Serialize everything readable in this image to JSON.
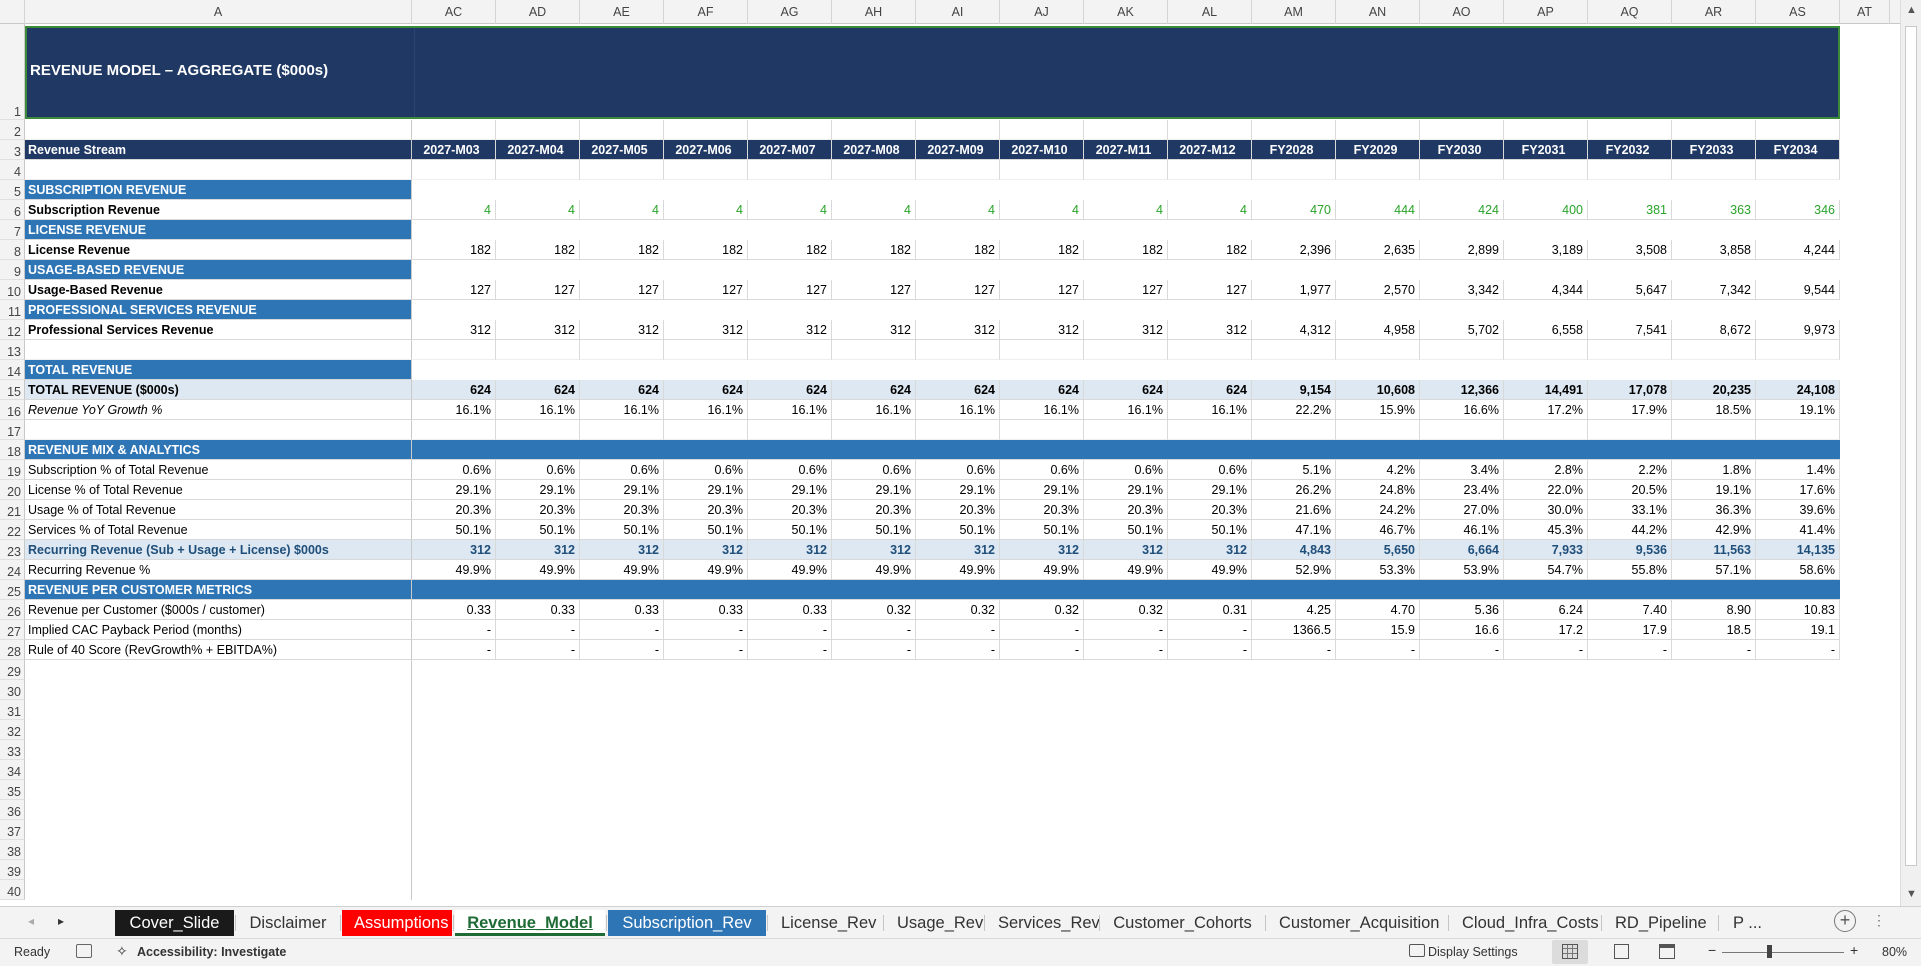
{
  "sheet": {
    "title": "REVENUE MODEL – AGGREGATE ($000s)",
    "column_letters": [
      "A",
      "AC",
      "AD",
      "AE",
      "AF",
      "AG",
      "AH",
      "AI",
      "AJ",
      "AK",
      "AL",
      "AM",
      "AN",
      "AO",
      "AP",
      "AQ",
      "AR",
      "AS",
      "AT"
    ],
    "row_numbers": [
      "1",
      "2",
      "3",
      "4",
      "5",
      "6",
      "7",
      "8",
      "9",
      "10",
      "11",
      "12",
      "13",
      "14",
      "15",
      "16",
      "17",
      "18",
      "19",
      "20",
      "21",
      "22",
      "23",
      "24",
      "25",
      "26",
      "27",
      "28",
      "29",
      "30",
      "31",
      "32",
      "33",
      "34",
      "35",
      "36",
      "37",
      "38",
      "39",
      "40"
    ],
    "header_label": "Revenue Stream",
    "periods": [
      "2027-M03",
      "2027-M04",
      "2027-M05",
      "2027-M06",
      "2027-M07",
      "2027-M08",
      "2027-M09",
      "2027-M10",
      "2027-M11",
      "2027-M12",
      "FY2028",
      "FY2029",
      "FY2030",
      "FY2031",
      "FY2032",
      "FY2033",
      "FY2034"
    ],
    "rows": [
      {
        "r": "5",
        "label": "SUBSCRIPTION REVENUE",
        "style": "sec",
        "values": []
      },
      {
        "r": "6",
        "label": "Subscription Revenue",
        "style": "bold green",
        "values": [
          "4",
          "4",
          "4",
          "4",
          "4",
          "4",
          "4",
          "4",
          "4",
          "4",
          "470",
          "444",
          "424",
          "400",
          "381",
          "363",
          "346"
        ]
      },
      {
        "r": "7",
        "label": "LICENSE REVENUE",
        "style": "sec",
        "values": []
      },
      {
        "r": "8",
        "label": "License Revenue",
        "style": "bold",
        "values": [
          "182",
          "182",
          "182",
          "182",
          "182",
          "182",
          "182",
          "182",
          "182",
          "182",
          "2,396",
          "2,635",
          "2,899",
          "3,189",
          "3,508",
          "3,858",
          "4,244"
        ]
      },
      {
        "r": "9",
        "label": "USAGE-BASED REVENUE",
        "style": "sec",
        "values": []
      },
      {
        "r": "10",
        "label": "Usage-Based Revenue",
        "style": "bold",
        "values": [
          "127",
          "127",
          "127",
          "127",
          "127",
          "127",
          "127",
          "127",
          "127",
          "127",
          "1,977",
          "2,570",
          "3,342",
          "4,344",
          "5,647",
          "7,342",
          "9,544"
        ]
      },
      {
        "r": "11",
        "label": "PROFESSIONAL SERVICES REVENUE",
        "style": "sec",
        "values": []
      },
      {
        "r": "12",
        "label": "Professional Services Revenue",
        "style": "bold",
        "values": [
          "312",
          "312",
          "312",
          "312",
          "312",
          "312",
          "312",
          "312",
          "312",
          "312",
          "4,312",
          "4,958",
          "5,702",
          "6,558",
          "7,541",
          "8,672",
          "9,973"
        ]
      },
      {
        "r": "13",
        "label": "",
        "style": "blankrow",
        "values": []
      },
      {
        "r": "14",
        "label": "TOTAL REVENUE",
        "style": "sec",
        "values": []
      },
      {
        "r": "15",
        "label": "TOTAL REVENUE ($000s)",
        "style": "tot",
        "values": [
          "624",
          "624",
          "624",
          "624",
          "624",
          "624",
          "624",
          "624",
          "624",
          "624",
          "9,154",
          "10,608",
          "12,366",
          "14,491",
          "17,078",
          "20,235",
          "24,108"
        ]
      },
      {
        "r": "16",
        "label": "Revenue YoY Growth %",
        "style": "ital",
        "values": [
          "16.1%",
          "16.1%",
          "16.1%",
          "16.1%",
          "16.1%",
          "16.1%",
          "16.1%",
          "16.1%",
          "16.1%",
          "16.1%",
          "22.2%",
          "15.9%",
          "16.6%",
          "17.2%",
          "17.9%",
          "18.5%",
          "19.1%"
        ]
      },
      {
        "r": "17",
        "label": "",
        "style": "blankrow",
        "values": []
      },
      {
        "r": "18",
        "label": "REVENUE MIX & ANALYTICS",
        "style": "sec fullsec",
        "values": []
      },
      {
        "r": "19",
        "label": "Subscription % of Total Revenue",
        "style": "",
        "values": [
          "0.6%",
          "0.6%",
          "0.6%",
          "0.6%",
          "0.6%",
          "0.6%",
          "0.6%",
          "0.6%",
          "0.6%",
          "0.6%",
          "5.1%",
          "4.2%",
          "3.4%",
          "2.8%",
          "2.2%",
          "1.8%",
          "1.4%"
        ]
      },
      {
        "r": "20",
        "label": "License % of Total Revenue",
        "style": "",
        "values": [
          "29.1%",
          "29.1%",
          "29.1%",
          "29.1%",
          "29.1%",
          "29.1%",
          "29.1%",
          "29.1%",
          "29.1%",
          "29.1%",
          "26.2%",
          "24.8%",
          "23.4%",
          "22.0%",
          "20.5%",
          "19.1%",
          "17.6%"
        ]
      },
      {
        "r": "21",
        "label": "Usage % of Total Revenue",
        "style": "",
        "values": [
          "20.3%",
          "20.3%",
          "20.3%",
          "20.3%",
          "20.3%",
          "20.3%",
          "20.3%",
          "20.3%",
          "20.3%",
          "20.3%",
          "21.6%",
          "24.2%",
          "27.0%",
          "30.0%",
          "33.1%",
          "36.3%",
          "39.6%"
        ]
      },
      {
        "r": "22",
        "label": "Services % of Total Revenue",
        "style": "",
        "values": [
          "50.1%",
          "50.1%",
          "50.1%",
          "50.1%",
          "50.1%",
          "50.1%",
          "50.1%",
          "50.1%",
          "50.1%",
          "50.1%",
          "47.1%",
          "46.7%",
          "46.1%",
          "45.3%",
          "44.2%",
          "42.9%",
          "41.4%"
        ]
      },
      {
        "r": "23",
        "label": "Recurring Revenue (Sub + Usage + License) $000s",
        "style": "rec",
        "values": [
          "312",
          "312",
          "312",
          "312",
          "312",
          "312",
          "312",
          "312",
          "312",
          "312",
          "4,843",
          "5,650",
          "6,664",
          "7,933",
          "9,536",
          "11,563",
          "14,135"
        ]
      },
      {
        "r": "24",
        "label": "Recurring Revenue %",
        "style": "",
        "values": [
          "49.9%",
          "49.9%",
          "49.9%",
          "49.9%",
          "49.9%",
          "49.9%",
          "49.9%",
          "49.9%",
          "49.9%",
          "49.9%",
          "52.9%",
          "53.3%",
          "53.9%",
          "54.7%",
          "55.8%",
          "57.1%",
          "58.6%"
        ]
      },
      {
        "r": "25",
        "label": "REVENUE PER CUSTOMER METRICS",
        "style": "sec fullsec",
        "values": []
      },
      {
        "r": "26",
        "label": "Revenue per Customer ($000s / customer)",
        "style": "",
        "values": [
          "0.33",
          "0.33",
          "0.33",
          "0.33",
          "0.33",
          "0.32",
          "0.32",
          "0.32",
          "0.32",
          "0.31",
          "4.25",
          "4.70",
          "5.36",
          "6.24",
          "7.40",
          "8.90",
          "10.83"
        ]
      },
      {
        "r": "27",
        "label": "Implied CAC Payback Period (months)",
        "style": "",
        "values": [
          "-",
          "-",
          "-",
          "-",
          "-",
          "-",
          "-",
          "-",
          "-",
          "-",
          "1366.5",
          "15.9",
          "16.6",
          "17.2",
          "17.9",
          "18.5",
          "19.1"
        ]
      },
      {
        "r": "28",
        "label": "Rule of 40 Score (RevGrowth% + EBITDA%)",
        "style": "",
        "values": [
          "-",
          "-",
          "-",
          "-",
          "-",
          "-",
          "-",
          "-",
          "-",
          "-",
          "-",
          "-",
          "-",
          "-",
          "-",
          "-",
          "-"
        ]
      }
    ]
  },
  "tabs": [
    {
      "label": "Cover_Slide",
      "style": "dark"
    },
    {
      "label": "Disclaimer",
      "style": ""
    },
    {
      "label": "Assumptions",
      "style": "red"
    },
    {
      "label": "Revenue_Model",
      "style": "active"
    },
    {
      "label": "Subscription_Rev",
      "style": "blue"
    },
    {
      "label": "License_Rev",
      "style": ""
    },
    {
      "label": "Usage_Rev",
      "style": ""
    },
    {
      "label": "Services_Rev",
      "style": ""
    },
    {
      "label": "Customer_Cohorts",
      "style": ""
    },
    {
      "label": "Customer_Acquisition",
      "style": ""
    },
    {
      "label": "Cloud_Infra_Costs",
      "style": ""
    },
    {
      "label": "RD_Pipeline",
      "style": ""
    },
    {
      "label": "P ...",
      "style": ""
    }
  ],
  "status": {
    "ready": "Ready",
    "accessibility": "Accessibility: Investigate",
    "display_settings": "Display Settings",
    "zoom": "80%"
  },
  "colors": {
    "navy": "#1f3864",
    "section_blue": "#2e75b6",
    "light_blue": "#dde8f3",
    "green_value": "#29a329",
    "tab_red": "#ff0000",
    "tab_dark": "#1a1a1a",
    "tab_blue": "#2e75b6"
  }
}
